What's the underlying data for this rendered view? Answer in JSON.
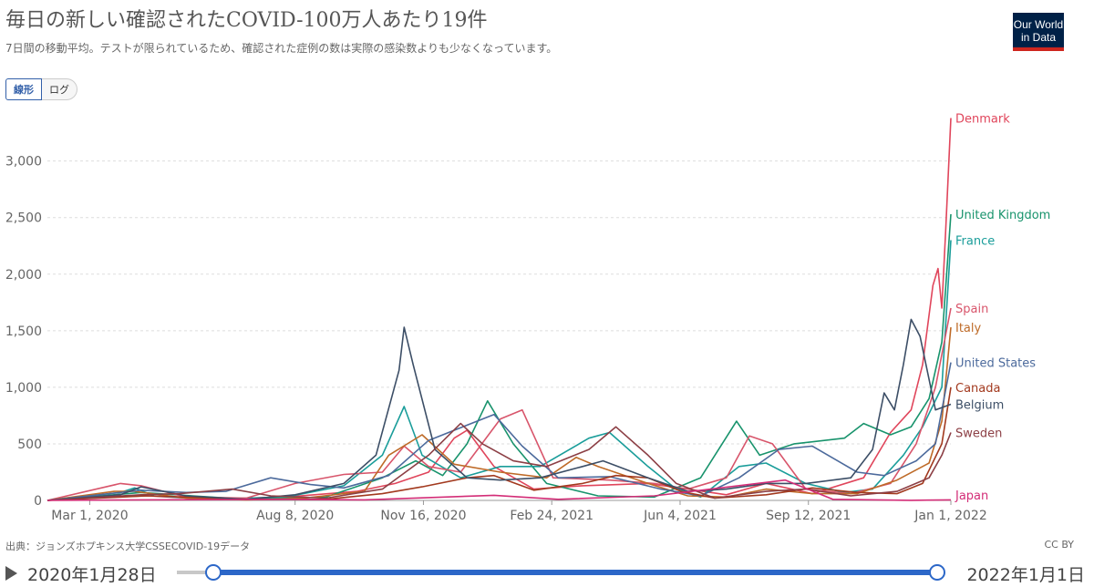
{
  "title": "毎日の新しい確認されたCOVID-100万人あたり19件",
  "subtitle": "7日間の移動平均。テストが限られているため、確認された症例の数は実際の感染数よりも少なくなっています。",
  "logo": {
    "line1": "Our World",
    "line2": "in Data"
  },
  "scale_toggle": {
    "linear": "線形",
    "log": "ログ"
  },
  "source": "出典：ジョンズホプキンス大学CSSECOVID-19データ",
  "license": "CC BY",
  "timeline": {
    "start": "2020年1月28日",
    "end": "2022年1月1日"
  },
  "colors": {
    "accent": "#2c67c8",
    "logo_bg": "#002147",
    "logo_bar": "#ce261e"
  },
  "chart_data": {
    "type": "line",
    "x_range": [
      "2020-01-28",
      "2022-01-01"
    ],
    "ylim": [
      0,
      3400
    ],
    "yticks": [
      0,
      500,
      1000,
      1500,
      2000,
      2500,
      3000
    ],
    "ytick_labels": [
      "0",
      "500",
      "1,000",
      "1,500",
      "2,000",
      "2,500",
      "3,000"
    ],
    "xticks": [
      "2020-03-01",
      "2020-08-08",
      "2020-11-16",
      "2021-02-24",
      "2021-06-04",
      "2021-09-12",
      "2022-01-01"
    ],
    "xtick_labels": [
      "Mar 1, 2020",
      "Aug 8, 2020",
      "Nov 16, 2020",
      "Feb 24, 2021",
      "Jun 4, 2021",
      "Sep 12, 2021",
      "Jan 1, 2022"
    ],
    "grid": true,
    "legend": "end-labels-right",
    "series": [
      {
        "name": "Denmark",
        "color": "#e0455b",
        "points": [
          [
            "2020-01-28",
            0
          ],
          [
            "2020-03-20",
            30
          ],
          [
            "2020-04-15",
            40
          ],
          [
            "2020-06-01",
            10
          ],
          [
            "2020-08-01",
            30
          ],
          [
            "2020-09-25",
            80
          ],
          [
            "2020-10-25",
            150
          ],
          [
            "2020-11-20",
            250
          ],
          [
            "2020-12-10",
            550
          ],
          [
            "2020-12-20",
            620
          ],
          [
            "2021-01-10",
            300
          ],
          [
            "2021-02-10",
            100
          ],
          [
            "2021-03-20",
            130
          ],
          [
            "2021-05-10",
            150
          ],
          [
            "2021-06-10",
            100
          ],
          [
            "2021-07-10",
            50
          ],
          [
            "2021-08-10",
            150
          ],
          [
            "2021-09-15",
            60
          ],
          [
            "2021-10-25",
            200
          ],
          [
            "2021-11-15",
            600
          ],
          [
            "2021-12-01",
            800
          ],
          [
            "2021-12-10",
            1200
          ],
          [
            "2021-12-18",
            1900
          ],
          [
            "2021-12-22",
            2050
          ],
          [
            "2021-12-25",
            1700
          ],
          [
            "2021-12-28",
            2400
          ],
          [
            "2022-01-01",
            3380
          ]
        ]
      },
      {
        "name": "United Kingdom",
        "color": "#18936c",
        "points": [
          [
            "2020-01-28",
            0
          ],
          [
            "2020-04-10",
            70
          ],
          [
            "2020-05-20",
            40
          ],
          [
            "2020-07-01",
            10
          ],
          [
            "2020-09-01",
            30
          ],
          [
            "2020-10-15",
            200
          ],
          [
            "2020-11-10",
            350
          ],
          [
            "2020-12-01",
            220
          ],
          [
            "2020-12-20",
            500
          ],
          [
            "2021-01-05",
            880
          ],
          [
            "2021-01-25",
            500
          ],
          [
            "2021-02-20",
            150
          ],
          [
            "2021-04-01",
            40
          ],
          [
            "2021-05-15",
            30
          ],
          [
            "2021-06-20",
            200
          ],
          [
            "2021-07-18",
            700
          ],
          [
            "2021-08-05",
            400
          ],
          [
            "2021-09-01",
            500
          ],
          [
            "2021-10-10",
            550
          ],
          [
            "2021-10-25",
            680
          ],
          [
            "2021-11-15",
            580
          ],
          [
            "2021-12-01",
            650
          ],
          [
            "2021-12-15",
            900
          ],
          [
            "2021-12-25",
            1400
          ],
          [
            "2022-01-01",
            2530
          ]
        ]
      },
      {
        "name": "France",
        "color": "#1a9d9a",
        "points": [
          [
            "2020-01-28",
            0
          ],
          [
            "2020-03-25",
            70
          ],
          [
            "2020-04-05",
            110
          ],
          [
            "2020-04-20",
            40
          ],
          [
            "2020-06-01",
            10
          ],
          [
            "2020-08-01",
            30
          ],
          [
            "2020-09-15",
            130
          ],
          [
            "2020-10-15",
            400
          ],
          [
            "2020-11-01",
            830
          ],
          [
            "2020-11-15",
            400
          ],
          [
            "2020-12-15",
            200
          ],
          [
            "2021-01-15",
            300
          ],
          [
            "2021-02-15",
            300
          ],
          [
            "2021-03-25",
            550
          ],
          [
            "2021-04-10",
            600
          ],
          [
            "2021-05-10",
            300
          ],
          [
            "2021-06-01",
            100
          ],
          [
            "2021-06-20",
            30
          ],
          [
            "2021-07-20",
            300
          ],
          [
            "2021-08-10",
            330
          ],
          [
            "2021-09-10",
            150
          ],
          [
            "2021-10-10",
            70
          ],
          [
            "2021-11-01",
            100
          ],
          [
            "2021-11-25",
            400
          ],
          [
            "2021-12-10",
            650
          ],
          [
            "2021-12-25",
            1000
          ],
          [
            "2022-01-01",
            2300
          ]
        ]
      },
      {
        "name": "Spain",
        "color": "#d8556b",
        "points": [
          [
            "2020-01-28",
            0
          ],
          [
            "2020-03-25",
            150
          ],
          [
            "2020-04-10",
            130
          ],
          [
            "2020-05-15",
            30
          ],
          [
            "2020-07-01",
            20
          ],
          [
            "2020-08-08",
            150
          ],
          [
            "2020-09-15",
            230
          ],
          [
            "2020-10-15",
            250
          ],
          [
            "2020-11-01",
            480
          ],
          [
            "2020-11-20",
            300
          ],
          [
            "2020-12-15",
            250
          ],
          [
            "2021-01-15",
            720
          ],
          [
            "2021-02-01",
            800
          ],
          [
            "2021-02-25",
            200
          ],
          [
            "2021-04-10",
            180
          ],
          [
            "2021-05-15",
            150
          ],
          [
            "2021-06-10",
            100
          ],
          [
            "2021-07-10",
            200
          ],
          [
            "2021-07-28",
            570
          ],
          [
            "2021-08-15",
            500
          ],
          [
            "2021-09-10",
            100
          ],
          [
            "2021-10-15",
            60
          ],
          [
            "2021-11-15",
            150
          ],
          [
            "2021-12-05",
            500
          ],
          [
            "2021-12-20",
            1000
          ],
          [
            "2022-01-01",
            1700
          ]
        ]
      },
      {
        "name": "Italy",
        "color": "#be6a27",
        "points": [
          [
            "2020-01-28",
            0
          ],
          [
            "2020-03-20",
            80
          ],
          [
            "2020-04-05",
            80
          ],
          [
            "2020-05-15",
            20
          ],
          [
            "2020-07-01",
            5
          ],
          [
            "2020-08-15",
            20
          ],
          [
            "2020-10-01",
            80
          ],
          [
            "2020-10-20",
            400
          ],
          [
            "2020-11-15",
            580
          ],
          [
            "2020-12-10",
            320
          ],
          [
            "2021-01-15",
            250
          ],
          [
            "2021-02-20",
            200
          ],
          [
            "2021-03-15",
            380
          ],
          [
            "2021-04-01",
            300
          ],
          [
            "2021-05-10",
            150
          ],
          [
            "2021-06-10",
            40
          ],
          [
            "2021-07-10",
            30
          ],
          [
            "2021-08-10",
            100
          ],
          [
            "2021-09-15",
            60
          ],
          [
            "2021-10-20",
            60
          ],
          [
            "2021-11-20",
            180
          ],
          [
            "2021-12-15",
            330
          ],
          [
            "2021-12-25",
            700
          ],
          [
            "2022-01-01",
            1530
          ]
        ]
      },
      {
        "name": "United States",
        "color": "#4c6a9c",
        "points": [
          [
            "2020-01-28",
            0
          ],
          [
            "2020-04-10",
            90
          ],
          [
            "2020-05-15",
            70
          ],
          [
            "2020-06-15",
            80
          ],
          [
            "2020-07-20",
            200
          ],
          [
            "2020-08-20",
            140
          ],
          [
            "2020-09-15",
            110
          ],
          [
            "2020-10-20",
            220
          ],
          [
            "2020-11-20",
            530
          ],
          [
            "2021-01-10",
            760
          ],
          [
            "2021-02-01",
            480
          ],
          [
            "2021-03-01",
            200
          ],
          [
            "2021-04-10",
            210
          ],
          [
            "2021-05-20",
            100
          ],
          [
            "2021-06-20",
            40
          ],
          [
            "2021-07-20",
            200
          ],
          [
            "2021-08-20",
            450
          ],
          [
            "2021-09-15",
            480
          ],
          [
            "2021-10-20",
            250
          ],
          [
            "2021-11-10",
            220
          ],
          [
            "2021-12-05",
            350
          ],
          [
            "2021-12-20",
            500
          ],
          [
            "2022-01-01",
            1220
          ]
        ]
      },
      {
        "name": "Canada",
        "color": "#a2391e",
        "points": [
          [
            "2020-01-28",
            0
          ],
          [
            "2020-04-15",
            40
          ],
          [
            "2020-05-15",
            30
          ],
          [
            "2020-07-01",
            10
          ],
          [
            "2020-09-01",
            10
          ],
          [
            "2020-10-15",
            60
          ],
          [
            "2020-11-15",
            120
          ],
          [
            "2020-12-20",
            200
          ],
          [
            "2021-01-10",
            220
          ],
          [
            "2021-02-10",
            90
          ],
          [
            "2021-03-20",
            150
          ],
          [
            "2021-04-15",
            220
          ],
          [
            "2021-05-10",
            200
          ],
          [
            "2021-06-05",
            80
          ],
          [
            "2021-07-01",
            20
          ],
          [
            "2021-08-10",
            50
          ],
          [
            "2021-09-15",
            110
          ],
          [
            "2021-10-20",
            70
          ],
          [
            "2021-11-20",
            60
          ],
          [
            "2021-12-10",
            150
          ],
          [
            "2021-12-25",
            500
          ],
          [
            "2022-01-01",
            1000
          ]
        ]
      },
      {
        "name": "Belgium",
        "color": "#3c4e66",
        "points": [
          [
            "2020-01-28",
            0
          ],
          [
            "2020-03-25",
            50
          ],
          [
            "2020-04-10",
            120
          ],
          [
            "2020-05-15",
            40
          ],
          [
            "2020-07-01",
            10
          ],
          [
            "2020-08-08",
            50
          ],
          [
            "2020-09-15",
            150
          ],
          [
            "2020-10-10",
            400
          ],
          [
            "2020-10-28",
            1150
          ],
          [
            "2020-11-01",
            1530
          ],
          [
            "2020-11-08",
            1200
          ],
          [
            "2020-11-25",
            450
          ],
          [
            "2020-12-20",
            200
          ],
          [
            "2021-01-15",
            180
          ],
          [
            "2021-02-15",
            200
          ],
          [
            "2021-03-20",
            300
          ],
          [
            "2021-04-05",
            350
          ],
          [
            "2021-05-10",
            200
          ],
          [
            "2021-06-10",
            80
          ],
          [
            "2021-07-10",
            100
          ],
          [
            "2021-08-10",
            150
          ],
          [
            "2021-09-10",
            150
          ],
          [
            "2021-10-15",
            200
          ],
          [
            "2021-11-01",
            450
          ],
          [
            "2021-11-10",
            950
          ],
          [
            "2021-11-18",
            800
          ],
          [
            "2021-11-25",
            1200
          ],
          [
            "2021-12-01",
            1600
          ],
          [
            "2021-12-08",
            1450
          ],
          [
            "2021-12-20",
            800
          ],
          [
            "2022-01-01",
            850
          ]
        ]
      },
      {
        "name": "Sweden",
        "color": "#8c3f45",
        "points": [
          [
            "2020-01-28",
            0
          ],
          [
            "2020-04-10",
            50
          ],
          [
            "2020-05-10",
            60
          ],
          [
            "2020-06-20",
            100
          ],
          [
            "2020-07-20",
            40
          ],
          [
            "2020-09-01",
            20
          ],
          [
            "2020-10-15",
            100
          ],
          [
            "2020-11-20",
            400
          ],
          [
            "2020-12-15",
            680
          ],
          [
            "2021-01-01",
            500
          ],
          [
            "2021-01-25",
            350
          ],
          [
            "2021-02-20",
            300
          ],
          [
            "2021-03-25",
            450
          ],
          [
            "2021-04-15",
            650
          ],
          [
            "2021-05-10",
            400
          ],
          [
            "2021-06-01",
            150
          ],
          [
            "2021-07-01",
            20
          ],
          [
            "2021-08-10",
            80
          ],
          [
            "2021-09-10",
            100
          ],
          [
            "2021-10-15",
            40
          ],
          [
            "2021-11-20",
            80
          ],
          [
            "2021-12-15",
            200
          ],
          [
            "2021-12-25",
            400
          ],
          [
            "2022-01-01",
            600
          ]
        ]
      },
      {
        "name": "Japan",
        "color": "#d32d77",
        "points": [
          [
            "2020-01-28",
            0
          ],
          [
            "2020-04-10",
            5
          ],
          [
            "2020-08-01",
            10
          ],
          [
            "2020-10-01",
            5
          ],
          [
            "2021-01-10",
            45
          ],
          [
            "2021-03-01",
            10
          ],
          [
            "2021-05-15",
            40
          ],
          [
            "2021-08-25",
            180
          ],
          [
            "2021-10-01",
            10
          ],
          [
            "2021-12-01",
            1
          ],
          [
            "2022-01-01",
            5
          ]
        ]
      }
    ]
  }
}
